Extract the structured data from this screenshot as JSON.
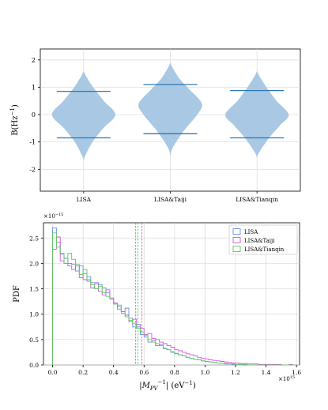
{
  "chart_data": [
    {
      "type": "violin",
      "ylabel": "B(Hz^-1)",
      "ylim": [
        -2.8,
        2.4
      ],
      "yticks": [
        -2,
        -1,
        0,
        1,
        2
      ],
      "ytick_labels": [
        "-2",
        "-1",
        "0",
        "1",
        "2"
      ],
      "grid": true,
      "categories": [
        "LISA",
        "LISA&Taiji",
        "LISA&Tianqin"
      ],
      "color": "#a8c8e4",
      "line_color": "#2e78b4",
      "violins": [
        {
          "name": "LISA",
          "q_low": -0.85,
          "q_high": 0.85,
          "profile": [
            [
              -1.7,
              0.0
            ],
            [
              -1.5,
              0.05
            ],
            [
              -1.0,
              0.28
            ],
            [
              -0.5,
              0.62
            ],
            [
              0.0,
              1.0
            ],
            [
              0.5,
              0.64
            ],
            [
              1.0,
              0.3
            ],
            [
              1.4,
              0.08
            ],
            [
              1.6,
              0.0
            ]
          ]
        },
        {
          "name": "LISA&Taiji",
          "q_low": -0.7,
          "q_high": 1.1,
          "profile": [
            [
              -1.5,
              0.0
            ],
            [
              -1.2,
              0.08
            ],
            [
              -0.6,
              0.42
            ],
            [
              0.0,
              0.85
            ],
            [
              0.4,
              1.0
            ],
            [
              0.9,
              0.62
            ],
            [
              1.3,
              0.3
            ],
            [
              1.7,
              0.08
            ],
            [
              1.9,
              0.0
            ]
          ]
        },
        {
          "name": "LISA&Tianqin",
          "q_low": -0.85,
          "q_high": 0.88,
          "profile": [
            [
              -1.6,
              0.0
            ],
            [
              -1.4,
              0.06
            ],
            [
              -0.9,
              0.35
            ],
            [
              -0.4,
              0.72
            ],
            [
              0.0,
              1.0
            ],
            [
              0.5,
              0.62
            ],
            [
              1.0,
              0.3
            ],
            [
              1.4,
              0.08
            ],
            [
              1.6,
              0.0
            ]
          ]
        }
      ]
    },
    {
      "type": "step-histogram",
      "ylabel": "PDF",
      "xlabel": "|M_PV^-1| (eV^-1)",
      "x_exponent": "×10^15",
      "y_exponent": "×10^-15",
      "xlim": [
        -0.06,
        1.62
      ],
      "ylim": [
        0,
        2.8
      ],
      "xticks": [
        0.0,
        0.2,
        0.4,
        0.6,
        0.8,
        1.0,
        1.2,
        1.4,
        1.6
      ],
      "xtick_labels": [
        "0.0",
        "0.2",
        "0.4",
        "0.6",
        "0.8",
        "1.0",
        "1.2",
        "1.4",
        "1.6"
      ],
      "yticks": [
        0.0,
        0.5,
        1.0,
        1.5,
        2.0,
        2.5
      ],
      "ytick_labels": [
        "0.0",
        "0.5",
        "1.0",
        "1.5",
        "2.0",
        "2.5"
      ],
      "grid": true,
      "legend_position": "top-right",
      "bin_start": 0.0,
      "bin_width": 0.025,
      "series": [
        {
          "name": "LISA",
          "color": "#6b8fe0",
          "mean": 0.545,
          "values": [
            2.7,
            2.42,
            2.18,
            2.1,
            2.0,
            1.98,
            1.85,
            1.95,
            1.68,
            1.74,
            1.62,
            1.62,
            1.58,
            1.52,
            1.42,
            1.3,
            1.2,
            1.15,
            1.05,
            1.12,
            0.92,
            0.75,
            0.8,
            0.6,
            0.55,
            0.45,
            0.48,
            0.38,
            0.4,
            0.32,
            0.3,
            0.25,
            0.22,
            0.2,
            0.18,
            0.15,
            0.13,
            0.11,
            0.1,
            0.08,
            0.07,
            0.06,
            0.05,
            0.04,
            0.03,
            0.02,
            0.02,
            0.01,
            0.01,
            0.01,
            0.0,
            0.0,
            0.0,
            0.0,
            0.0,
            0.0,
            0.0,
            0.0,
            0.0,
            0.0,
            0.0,
            0.0,
            0.0,
            0.0
          ]
        },
        {
          "name": "LISA&Taiji",
          "color": "#e050e0",
          "mean": 0.585,
          "values": [
            2.28,
            2.52,
            2.05,
            2.0,
            1.95,
            1.88,
            1.95,
            1.72,
            1.8,
            1.65,
            1.52,
            1.6,
            1.45,
            1.38,
            1.48,
            1.3,
            1.22,
            1.1,
            1.05,
            0.98,
            0.85,
            0.9,
            0.75,
            0.72,
            0.6,
            0.62,
            0.52,
            0.5,
            0.45,
            0.42,
            0.38,
            0.35,
            0.3,
            0.28,
            0.25,
            0.22,
            0.2,
            0.18,
            0.15,
            0.13,
            0.12,
            0.1,
            0.09,
            0.08,
            0.07,
            0.06,
            0.05,
            0.04,
            0.04,
            0.03,
            0.03,
            0.02,
            0.02,
            0.02,
            0.01,
            0.01,
            0.01,
            0.01,
            0.01,
            0.01,
            0.0,
            0.0,
            0.01,
            0.0
          ]
        },
        {
          "name": "LISA&Tianqin",
          "color": "#5cc85c",
          "mean": 0.56,
          "values": [
            2.6,
            2.32,
            2.2,
            2.0,
            2.2,
            2.08,
            1.98,
            1.78,
            1.88,
            1.68,
            1.58,
            1.5,
            1.55,
            1.42,
            1.35,
            1.32,
            1.2,
            1.18,
            1.02,
            0.95,
            0.88,
            0.82,
            0.72,
            0.65,
            0.58,
            0.5,
            0.45,
            0.42,
            0.38,
            0.33,
            0.3,
            0.26,
            0.23,
            0.2,
            0.18,
            0.15,
            0.13,
            0.11,
            0.1,
            0.08,
            0.07,
            0.06,
            0.05,
            0.04,
            0.03,
            0.03,
            0.02,
            0.02,
            0.01,
            0.01,
            0.01,
            0.0,
            0.0,
            0.0,
            0.0,
            0.0,
            0.0,
            0.0,
            0.0,
            0.0,
            0.0,
            0.0,
            0.0,
            0.0
          ]
        }
      ]
    }
  ]
}
